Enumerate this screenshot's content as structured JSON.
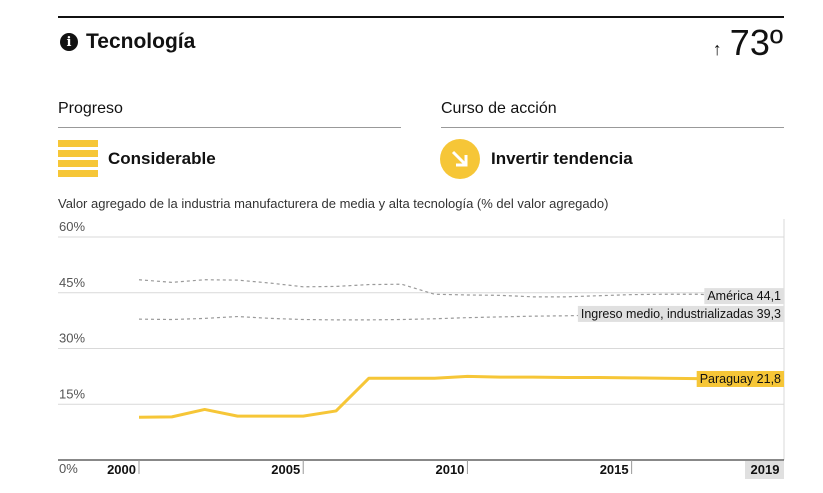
{
  "header": {
    "title": "Tecnología",
    "rank_arrow": "↑",
    "rank": "73º"
  },
  "progress": {
    "heading": "Progreso",
    "value": "Considerable"
  },
  "action": {
    "heading": "Curso de acción",
    "value": "Invertir tendencia"
  },
  "colors": {
    "accent": "#f6c637",
    "comparison": "#9a9a9a",
    "label_bg": "#e0e0e0"
  },
  "chart_data": {
    "type": "line",
    "title": "Valor agregado de la industria manufacturera de media y alta tecnología (% del valor agregado)",
    "ylim": [
      0,
      60
    ],
    "yticks": [
      0,
      15,
      30,
      45,
      60
    ],
    "ytick_labels": [
      "0%",
      "15%",
      "30%",
      "45%",
      "60%"
    ],
    "xlim": [
      2000,
      2019
    ],
    "xticks": [
      2000,
      2005,
      2010,
      2015,
      2019
    ],
    "xtick_labels": [
      "2000",
      "2005",
      "2010",
      "2015",
      "2019"
    ],
    "x": [
      2000,
      2001,
      2002,
      2003,
      2004,
      2005,
      2006,
      2007,
      2008,
      2009,
      2010,
      2011,
      2012,
      2013,
      2014,
      2015,
      2016,
      2017,
      2018,
      2019
    ],
    "series": [
      {
        "name": "Paraguay",
        "label": "Paraguay 21,8",
        "style": "solid",
        "values": [
          11.5,
          11.6,
          13.6,
          11.8,
          11.8,
          11.8,
          13.2,
          22.0,
          22.0,
          22.0,
          22.5,
          22.3,
          22.3,
          22.2,
          22.2,
          22.1,
          22.0,
          21.9,
          21.8,
          21.8
        ]
      },
      {
        "name": "América",
        "label": "América 44,1",
        "style": "dashed",
        "values": [
          48.5,
          47.8,
          48.5,
          48.4,
          47.6,
          46.6,
          46.7,
          47.2,
          47.3,
          44.6,
          44.4,
          44.3,
          43.9,
          43.9,
          44.2,
          44.5,
          44.6,
          44.6,
          44.2,
          44.1
        ]
      },
      {
        "name": "Ingreso medio, industrializadas",
        "label": "Ingreso medio, industrializadas 39,3",
        "style": "dashed",
        "values": [
          37.9,
          37.8,
          38.1,
          38.6,
          38.1,
          37.8,
          37.7,
          37.7,
          37.8,
          38.0,
          38.3,
          38.5,
          38.7,
          38.8,
          39.0,
          39.1,
          39.2,
          39.3,
          39.3,
          39.3
        ]
      }
    ]
  }
}
